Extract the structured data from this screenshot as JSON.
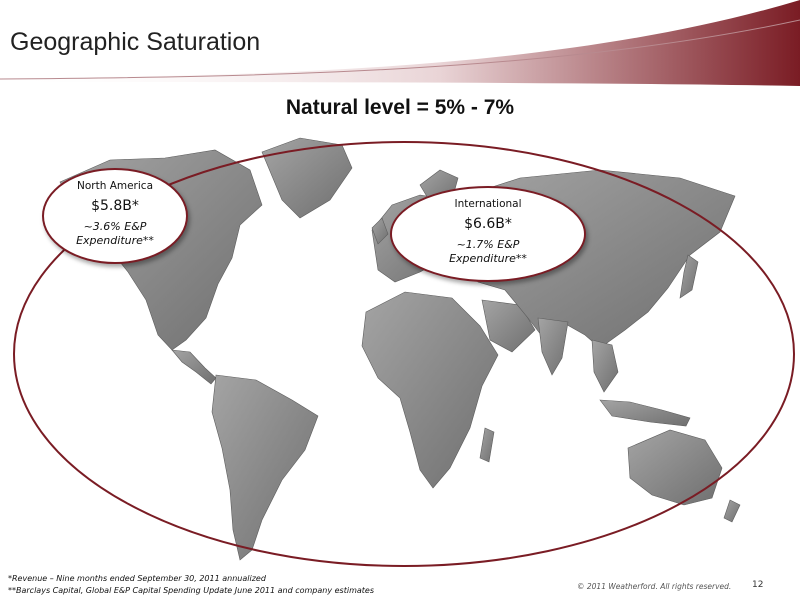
{
  "slide": {
    "title": "Geographic Saturation",
    "subtitle": "Natural level = 5% - 7%"
  },
  "callouts": {
    "north_america": {
      "region": "North America",
      "revenue": "$5.8B*",
      "share_line1": "~3.6% E&P",
      "share_line2": "Expenditure**"
    },
    "international": {
      "region": "International",
      "revenue": "$6.6B*",
      "share_line1": "~1.7% E&P",
      "share_line2": "Expenditure**"
    }
  },
  "footnotes": {
    "revenue_note": "*Revenue –  Nine months ended September 30, 2011 annualized",
    "source_note": "**Barclays Capital, Global E&P Capital Spending Update June 2011 and company estimates"
  },
  "footer": {
    "copyright": "© 2011 Weatherford. All rights reserved.",
    "page_number": "12"
  },
  "colors": {
    "accent": "#7a1c24",
    "land": "#8c8c8c",
    "background": "#ffffff"
  }
}
